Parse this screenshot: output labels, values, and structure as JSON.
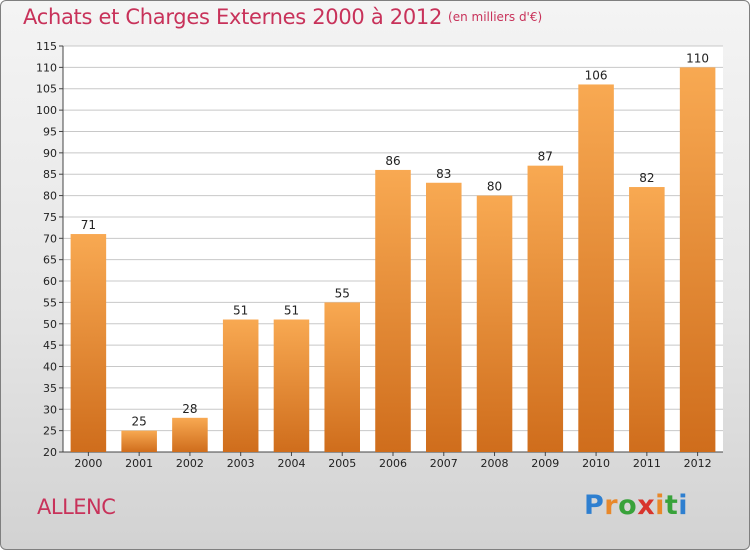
{
  "title": "Achats et Charges Externes 2000 à 2012",
  "unit_note": "(en milliers d'€)",
  "commune": "ALLENC",
  "logo": {
    "text": "Proxiti",
    "letters": [
      "P",
      "r",
      "o",
      "x",
      "i",
      "t",
      "i"
    ],
    "colors": [
      "#2e7fd0",
      "#e8882a",
      "#38a23a",
      "#d8342c",
      "#e8882a",
      "#38a23a",
      "#2e7fd0"
    ]
  },
  "colors": {
    "title": "#c8325a",
    "bar_top": "#f8a952",
    "bar_bottom": "#cf6d1c",
    "grid": "#c8c8c8"
  },
  "chart_data": {
    "type": "bar",
    "categories": [
      "2000",
      "2001",
      "2002",
      "2003",
      "2004",
      "2005",
      "2006",
      "2007",
      "2008",
      "2009",
      "2010",
      "2011",
      "2012"
    ],
    "values": [
      71,
      25,
      28,
      51,
      51,
      55,
      86,
      83,
      80,
      87,
      106,
      82,
      110
    ],
    "title": "Achats et Charges Externes 2000 à 2012",
    "ylim": [
      20,
      115
    ],
    "ytick_step": 5,
    "grid": true,
    "legend": "none"
  }
}
